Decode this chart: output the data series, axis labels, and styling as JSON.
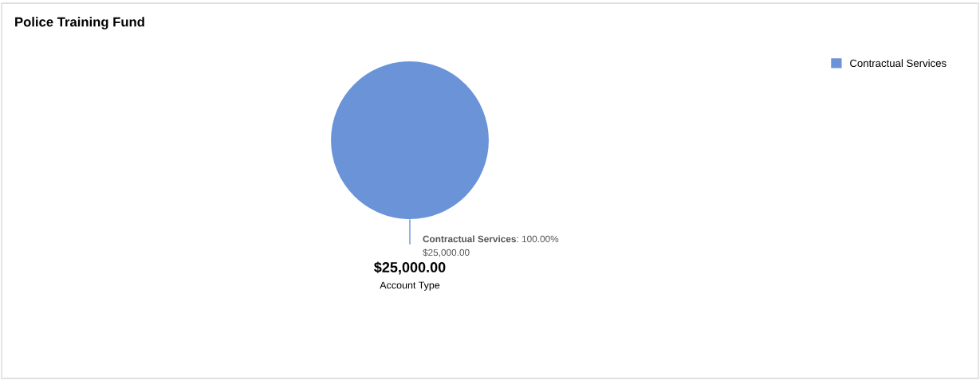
{
  "chart_data": {
    "type": "pie",
    "title": "Police Training Fund",
    "xlabel": "Account Type",
    "categories": [
      "Contractual Services"
    ],
    "values": [
      100
    ],
    "colors": [
      "#6a93d8"
    ],
    "value_labels": [
      ": 100.00%\n$25,000.00"
    ],
    "annotations": [
      "$25,000.00"
    ],
    "legend": "top right"
  }
}
